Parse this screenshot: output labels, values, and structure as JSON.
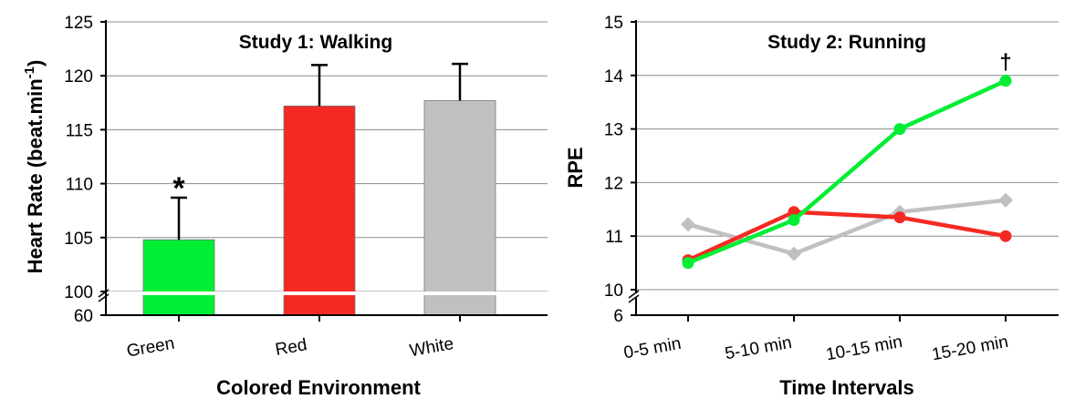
{
  "chart_data": [
    {
      "type": "bar",
      "title": "Study 1: Walking",
      "xlabel": "Colored Environment",
      "ylabel": "Heart Rate (beat.min",
      "ylabel_superscript": "-1",
      "ylabel_close": ")",
      "categories": [
        "Green",
        "Red",
        "White"
      ],
      "values": [
        104.8,
        117.2,
        117.7
      ],
      "errors": [
        3.9,
        3.8,
        3.4
      ],
      "colors": [
        "#00ee33",
        "#f42a22",
        "#c0c0c0"
      ],
      "ylim": [
        100,
        125
      ],
      "axis_break": true,
      "ytick_labels": [
        "60",
        "100",
        "105",
        "110",
        "115",
        "120",
        "125"
      ],
      "grid": true,
      "annotations": [
        {
          "category": "Green",
          "text": "*"
        }
      ]
    },
    {
      "type": "line",
      "title": "Study 2: Running",
      "xlabel": "Time Intervals",
      "ylabel": "RPE",
      "categories": [
        "0-5 min",
        "5-10 min",
        "10-15 min",
        "15-20 min"
      ],
      "series": [
        {
          "values": [
            10.5,
            11.3,
            13.0,
            13.9
          ],
          "color": "#00ee33",
          "marker": "circle"
        },
        {
          "values": [
            10.55,
            11.45,
            11.35,
            11.0
          ],
          "color": "#f42a22",
          "marker": "circle"
        },
        {
          "values": [
            11.22,
            10.67,
            11.45,
            11.67
          ],
          "color": "#c0c0c0",
          "marker": "diamond"
        }
      ],
      "ylim": [
        10,
        15
      ],
      "axis_break": true,
      "ytick_labels": [
        "6",
        "10",
        "11",
        "12",
        "13",
        "14",
        "15"
      ],
      "grid": true,
      "annotations": [
        {
          "category": "15-20 min",
          "text": "†"
        }
      ]
    }
  ]
}
